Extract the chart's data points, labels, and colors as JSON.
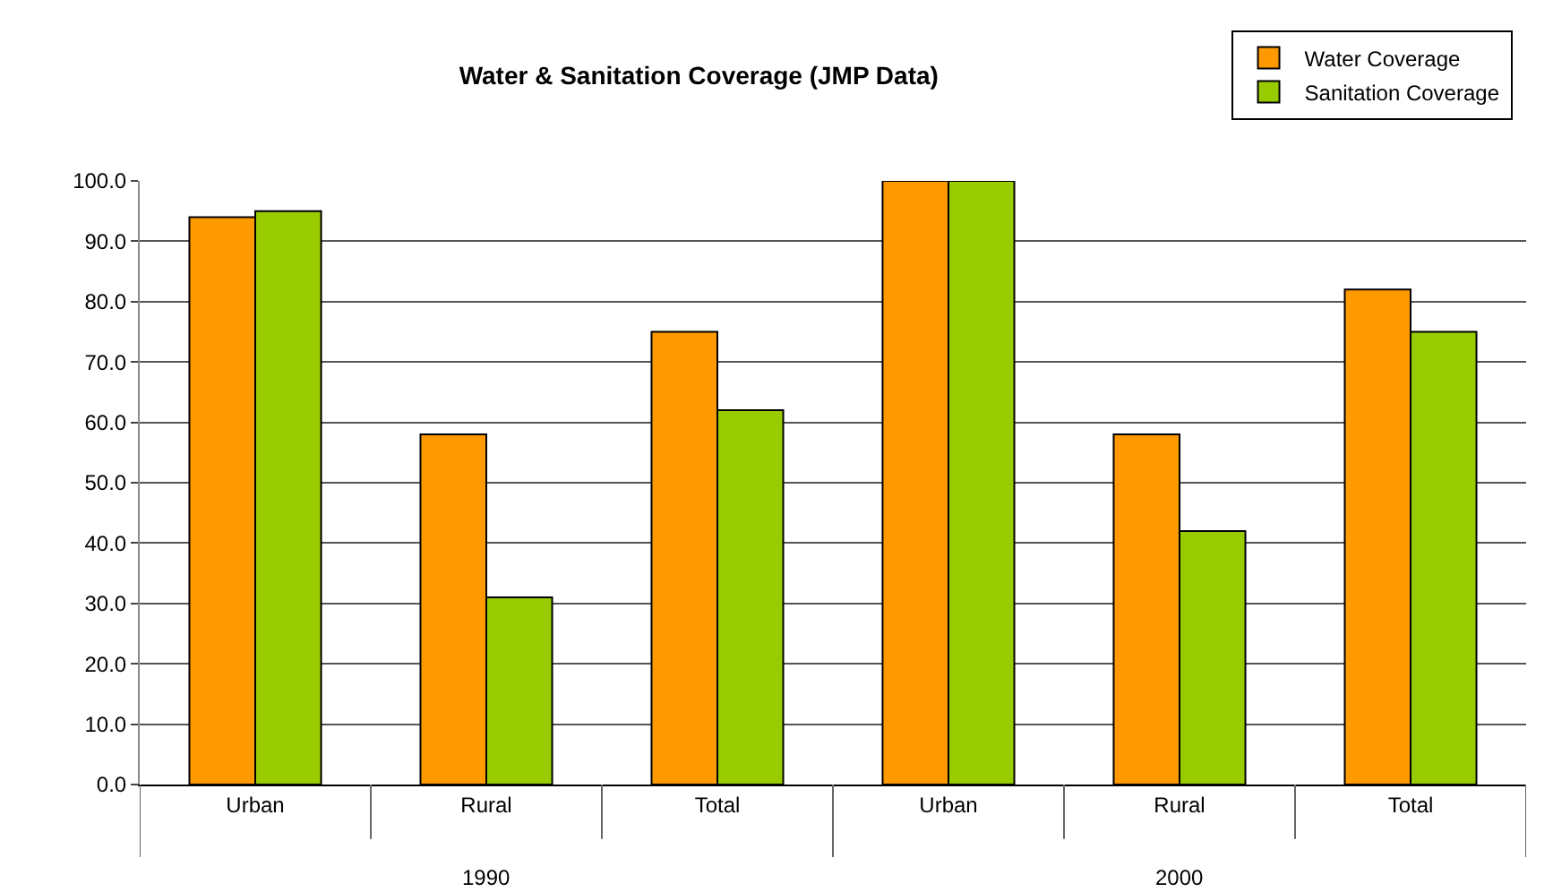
{
  "chart_data": {
    "type": "bar",
    "title": "Water & Sanitation Coverage (JMP Data)",
    "categories": [
      "Urban",
      "Rural",
      "Total",
      "Urban",
      "Rural",
      "Total"
    ],
    "series": [
      {
        "name": "Water Coverage",
        "color": "#ff9900",
        "values": [
          94,
          58,
          75,
          100,
          58,
          82
        ]
      },
      {
        "name": "Sanitation Coverage",
        "color": "#99cc00",
        "values": [
          95,
          31,
          62,
          100,
          42,
          75
        ]
      }
    ],
    "ylim": [
      0,
      100
    ],
    "yticks": [
      {
        "value": 0,
        "label": "0.0"
      },
      {
        "value": 10,
        "label": "10.0"
      },
      {
        "value": 20,
        "label": "20.0"
      },
      {
        "value": 30,
        "label": "30.0"
      },
      {
        "value": 40,
        "label": "40.0"
      },
      {
        "value": 50,
        "label": "50.0"
      },
      {
        "value": 60,
        "label": "60.0"
      },
      {
        "value": 70,
        "label": "70.0"
      },
      {
        "value": 80,
        "label": "80.0"
      },
      {
        "value": 90,
        "label": "90.0"
      },
      {
        "value": 100,
        "label": "100.0"
      }
    ],
    "grid": "y",
    "legend": "top right",
    "annotations": [
      "1990",
      "2000"
    ]
  }
}
